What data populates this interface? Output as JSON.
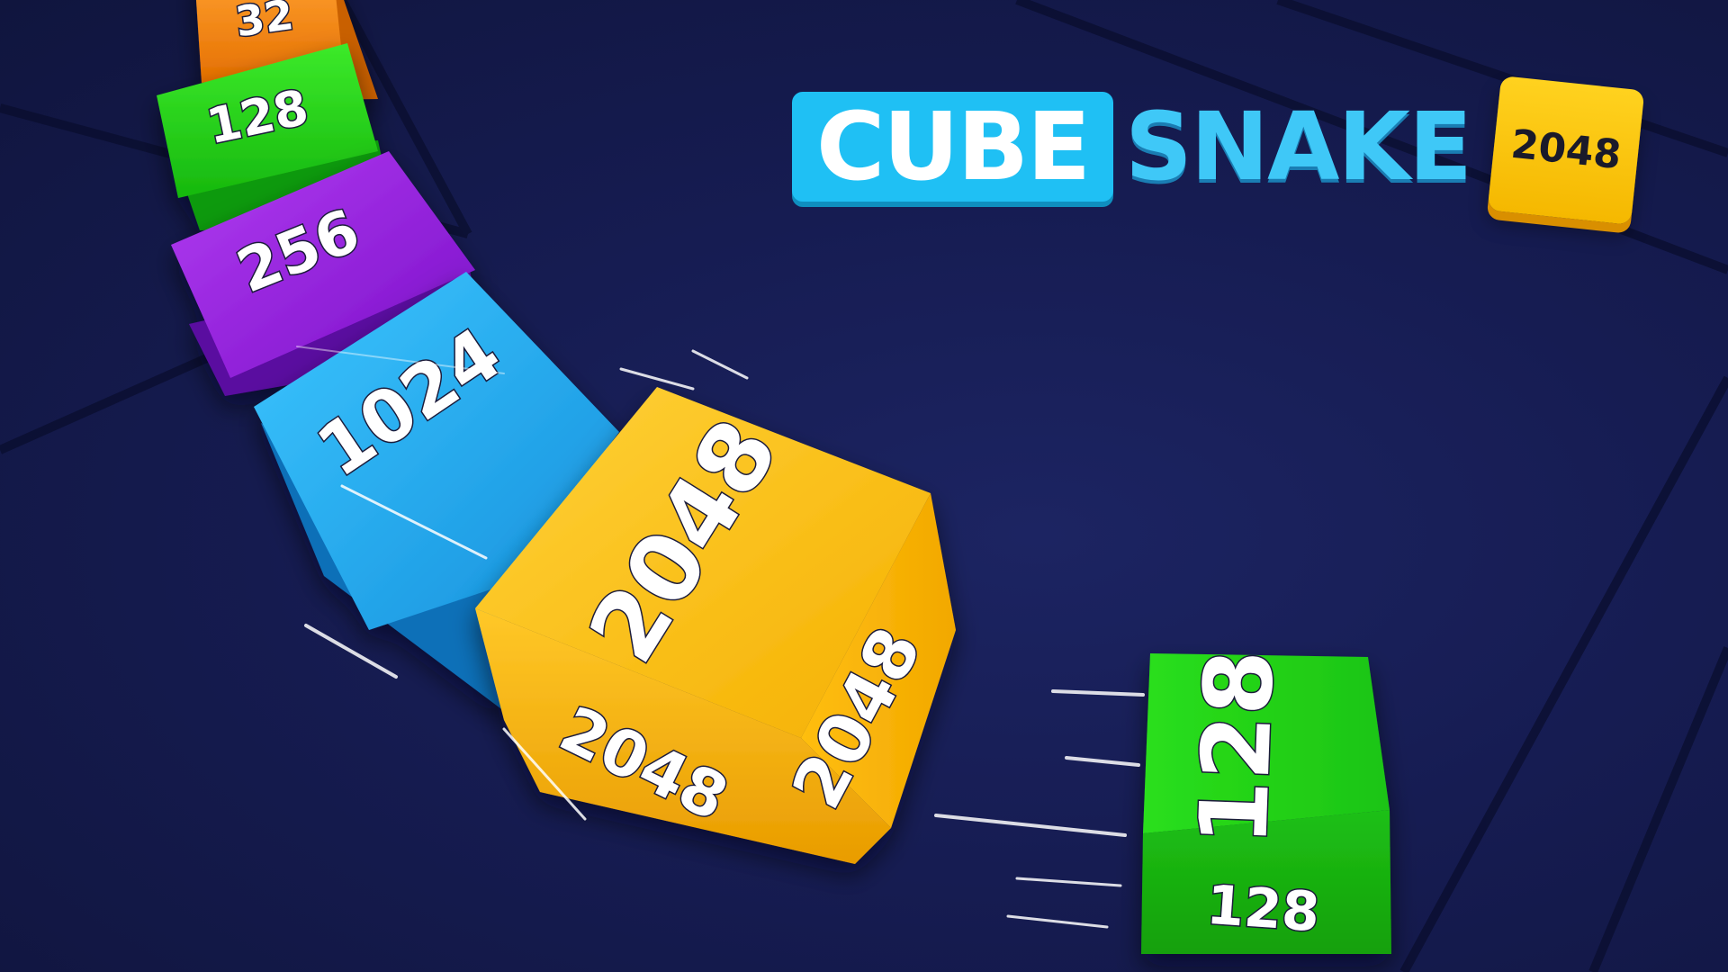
{
  "title": {
    "part1": "CUBE",
    "part2": "SNAKE",
    "badge": "2048"
  },
  "snake": {
    "cubes": [
      {
        "value": "32",
        "color": "#ff8a1a"
      },
      {
        "value": "128",
        "color": "#22d61a"
      },
      {
        "value": "256",
        "color": "#a020e8"
      },
      {
        "value": "1024",
        "color": "#1fb4f5"
      },
      {
        "value": "2048",
        "color": "#ffc21a"
      }
    ],
    "head_faces": {
      "top": "2048",
      "front": "2048",
      "side": "2048"
    }
  },
  "loose_cube": {
    "value_face": "128",
    "value_bottom": "128",
    "color": "#22d61a"
  },
  "colors": {
    "background": "#161c52",
    "orange": "#ff8a1a",
    "green": "#22d61a",
    "purple": "#a020e8",
    "blue": "#1fb4f5",
    "yellow": "#ffc21a"
  }
}
